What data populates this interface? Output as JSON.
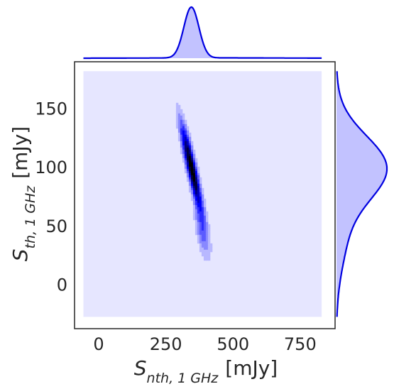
{
  "chart_data": {
    "type": "kde-jointplot",
    "xlabel": {
      "symbol": "S",
      "subscript": "nth, 1 GHz",
      "unit": "[mJy]"
    },
    "ylabel": {
      "symbol": "S",
      "subscript": "th, 1 GHz",
      "unit": "[mJy]"
    },
    "xlim": [
      -90,
      880
    ],
    "ylim": [
      -37,
      190
    ],
    "xticks": [
      0,
      250,
      500,
      750
    ],
    "yticks": [
      0,
      50,
      100,
      150
    ],
    "grid": false,
    "legend": "none",
    "colors": {
      "dark": "#000000",
      "mid": "#0000ff",
      "light": "#e6e6ff",
      "marginal_line": "#0000e0",
      "marginal_fill": "#c2c2ff",
      "frame": "#262626"
    },
    "joint_density": {
      "levels": 10,
      "background_extent": {
        "x": [
          -57,
          830
        ],
        "y": [
          -27,
          182
        ]
      },
      "peak": {
        "x": 345,
        "y": 98
      },
      "components": [
        {
          "weight": 0.8,
          "mean": [
            345,
            100
          ],
          "sd": [
            28,
            26
          ],
          "corr": -0.9
        },
        {
          "weight": 0.2,
          "mean": [
            385,
            45
          ],
          "sd": [
            20,
            16
          ],
          "corr": -0.6
        }
      ]
    },
    "marginal_x": {
      "x_range": [
        -57,
        830
      ],
      "mode": 345,
      "components": [
        {
          "weight": 0.95,
          "mean": 345,
          "sd": 28
        },
        {
          "weight": 0.05,
          "mean": 440,
          "sd": 220
        }
      ]
    },
    "marginal_y": {
      "y_range": [
        -27,
        182
      ],
      "mode": 100,
      "components": [
        {
          "weight": 0.85,
          "mean": 100,
          "sd": 27
        },
        {
          "weight": 0.15,
          "mean": 40,
          "sd": 28
        }
      ]
    }
  }
}
